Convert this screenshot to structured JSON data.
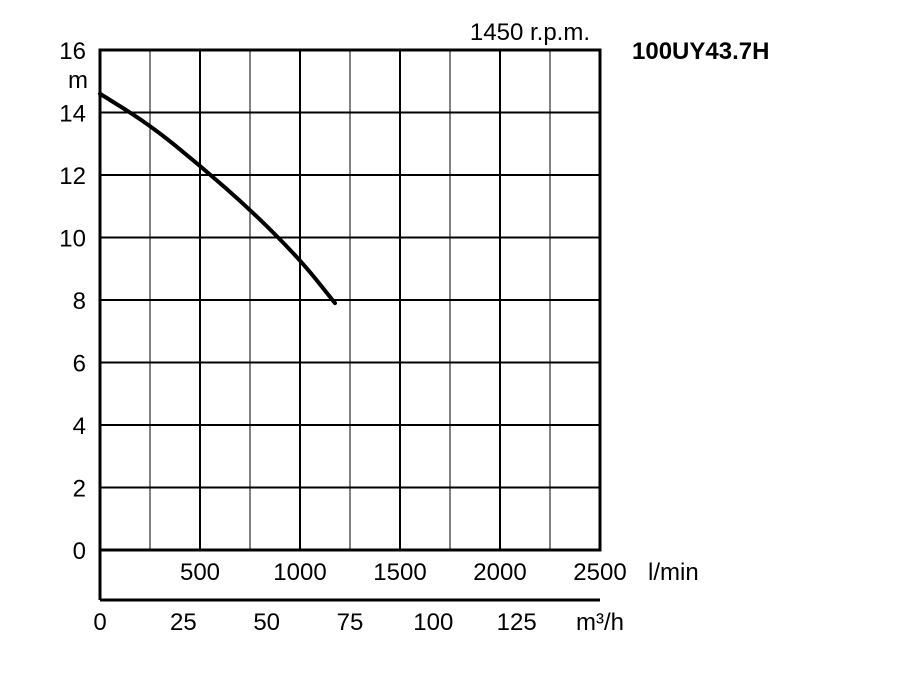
{
  "chart_data": {
    "type": "line",
    "title": "100UY43.7H",
    "subtitle": "1450 r.p.m.",
    "ylabel": "m",
    "ylim": [
      0,
      16
    ],
    "yticks": [
      "0",
      "2",
      "4",
      "6",
      "8",
      "10",
      "12",
      "14",
      "16"
    ],
    "xlim_lpm": [
      0,
      2500
    ],
    "xticks_lpm": [
      "500",
      "1000",
      "1500",
      "2000",
      "2500"
    ],
    "x_unit_lpm": "l/min",
    "xticks_m3h": [
      "0",
      "25",
      "50",
      "75",
      "100",
      "125"
    ],
    "x_unit_m3h": "m³/h",
    "grid": true,
    "series": [
      {
        "x": [
          0,
          250,
          500,
          750,
          1000,
          1175
        ],
        "y": [
          14.6,
          13.6,
          12.3,
          10.9,
          9.3,
          7.9
        ]
      }
    ]
  }
}
